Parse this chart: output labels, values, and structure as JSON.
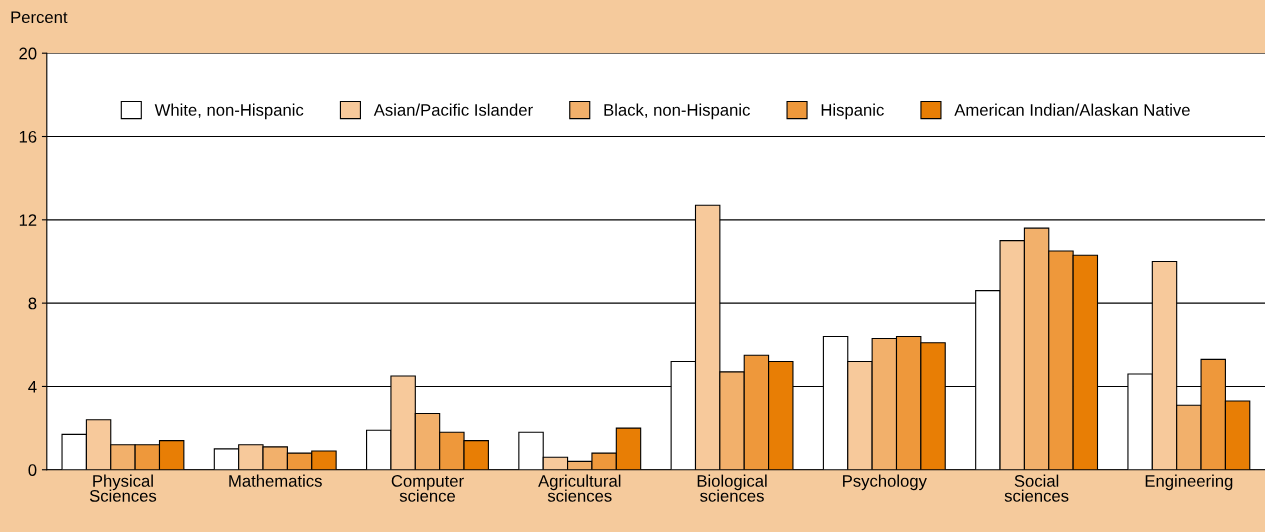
{
  "chart_data": {
    "type": "bar",
    "ylabel": "Percent",
    "categories": [
      "Physical\nSciences",
      "Mathematics",
      "Computer\nscience",
      "Agricultural\nsciences",
      "Biological\nsciences",
      "Psychology",
      "Social\nsciences",
      "Engineering"
    ],
    "series": [
      {
        "name": "White, non-Hispanic",
        "color": "#ffffff",
        "values": [
          1.7,
          1.0,
          1.9,
          1.8,
          5.2,
          6.4,
          8.6,
          4.6
        ]
      },
      {
        "name": "Asian/Pacific Islander",
        "color": "#f7c99b",
        "values": [
          2.4,
          1.2,
          4.5,
          0.6,
          12.7,
          5.2,
          11.0,
          10.0
        ]
      },
      {
        "name": "Black, non-Hispanic",
        "color": "#f2b06b",
        "values": [
          1.2,
          1.1,
          2.7,
          0.4,
          4.7,
          6.3,
          11.6,
          3.1
        ]
      },
      {
        "name": "Hispanic",
        "color": "#ee983b",
        "values": [
          1.2,
          0.8,
          1.8,
          0.8,
          5.5,
          6.4,
          10.5,
          5.3
        ]
      },
      {
        "name": "American Indian/Alaskan Native",
        "color": "#e87e05",
        "values": [
          1.4,
          0.9,
          1.4,
          2.0,
          5.2,
          6.1,
          10.3,
          3.3
        ]
      }
    ],
    "ylim": [
      0,
      20
    ],
    "yticks": [
      0,
      4,
      8,
      12,
      16,
      20
    ],
    "grid": "y",
    "legend": "top"
  }
}
